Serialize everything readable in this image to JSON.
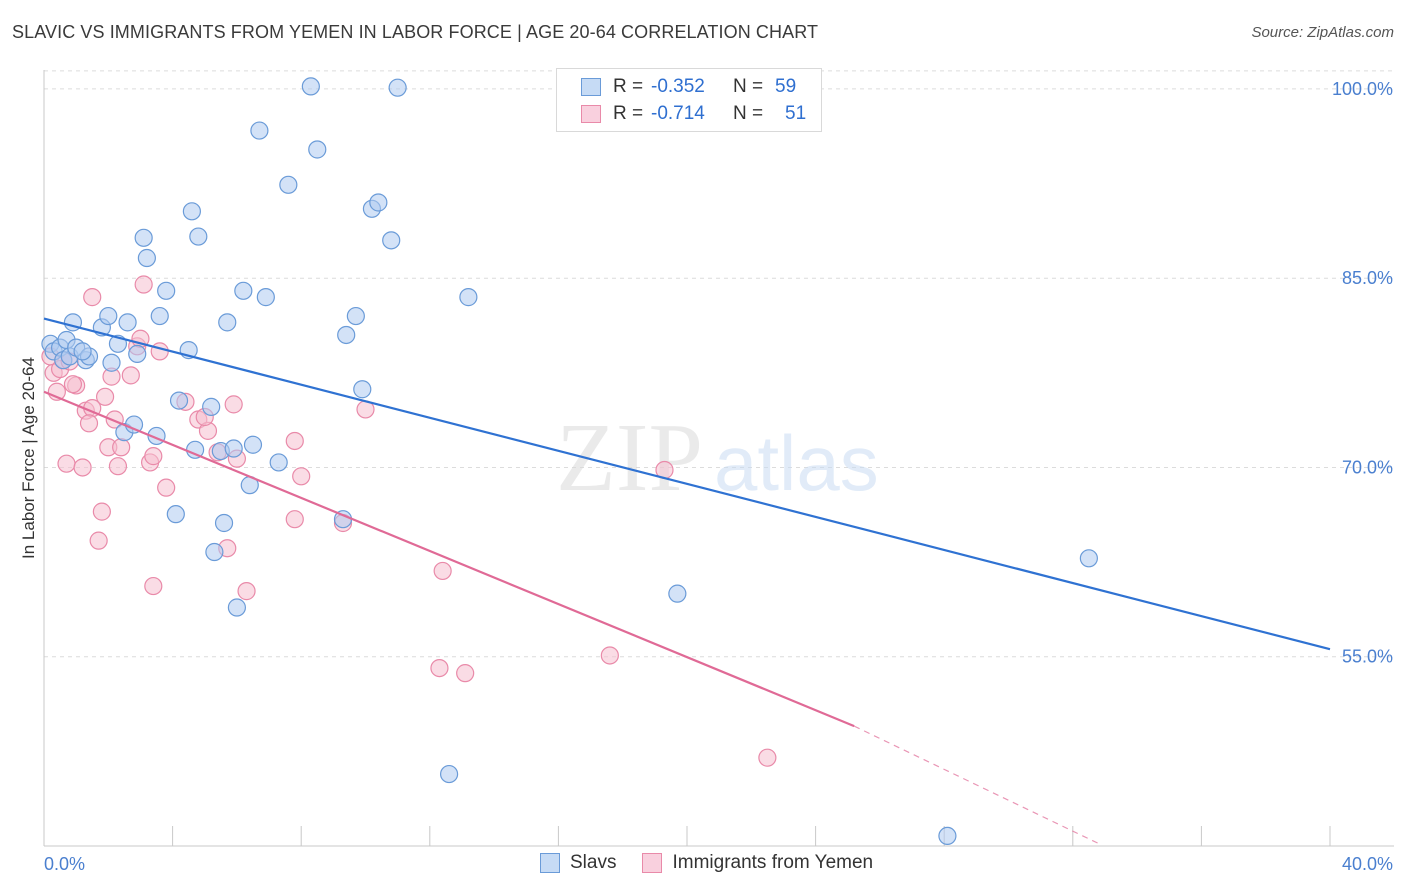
{
  "header": {
    "title": "SLAVIC VS IMMIGRANTS FROM YEMEN IN LABOR FORCE | AGE 20-64 CORRELATION CHART",
    "source": "Source: ZipAtlas.com"
  },
  "legend": {
    "rows": [
      {
        "r_label": "R =",
        "r_value": "-0.352",
        "n_label": "N =",
        "n_value": "59"
      },
      {
        "r_label": "R =",
        "r_value": "-0.714",
        "n_label": "N =",
        "n_value": "51"
      }
    ]
  },
  "bottom_legend": [
    "Slavs",
    "Immigrants from Yemen"
  ],
  "colors": {
    "slavs_fill": "#aecbf0",
    "slavs_stroke": "#6a9bd8",
    "slavs_line": "#2f72d2",
    "yemen_fill": "#f6bfd0",
    "yemen_stroke": "#e98aa9",
    "yemen_line": "#e06a96",
    "grid": "#dcdcdc",
    "tick_text": "#4a7fcf"
  },
  "watermark": {
    "zip": "ZIP",
    "atlas": "atlas"
  },
  "chart_data": {
    "type": "scatter",
    "title": "SLAVIC VS IMMIGRANTS FROM YEMEN IN LABOR FORCE | AGE 20-64 CORRELATION CHART",
    "ylabel": "In Labor Force | Age 20-64",
    "xlabel": "",
    "xlim": [
      0,
      40
    ],
    "ylim": [
      40,
      101.5
    ],
    "x_tick_labels": [
      "0.0%",
      "40.0%"
    ],
    "y_ticks": [
      {
        "value": 100,
        "label": "100.0%"
      },
      {
        "value": 85,
        "label": "85.0%"
      },
      {
        "value": 70,
        "label": "70.0%"
      },
      {
        "value": 55,
        "label": "55.0%"
      }
    ],
    "grid": true,
    "legend_position": "top-center",
    "series": [
      {
        "name": "Slavs",
        "trendline": {
          "x": [
            0,
            40
          ],
          "y": [
            81.8,
            55.6
          ],
          "extrapolated_to": 40
        },
        "points": [
          [
            0.2,
            79.8
          ],
          [
            0.3,
            79.2
          ],
          [
            0.5,
            79.5
          ],
          [
            0.6,
            78.5
          ],
          [
            0.8,
            78.8
          ],
          [
            0.7,
            80.1
          ],
          [
            1.0,
            79.5
          ],
          [
            0.9,
            81.5
          ],
          [
            1.3,
            78.5
          ],
          [
            1.4,
            78.8
          ],
          [
            1.2,
            79.2
          ],
          [
            1.8,
            81.1
          ],
          [
            2.0,
            82.0
          ],
          [
            2.1,
            78.3
          ],
          [
            2.3,
            79.8
          ],
          [
            2.6,
            81.5
          ],
          [
            2.9,
            79.0
          ],
          [
            3.2,
            86.6
          ],
          [
            3.1,
            88.2
          ],
          [
            3.6,
            82.0
          ],
          [
            3.8,
            84.0
          ],
          [
            4.5,
            79.3
          ],
          [
            4.6,
            90.3
          ],
          [
            4.8,
            88.3
          ],
          [
            4.2,
            75.3
          ],
          [
            5.2,
            74.8
          ],
          [
            5.7,
            81.5
          ],
          [
            6.2,
            84.0
          ],
          [
            6.7,
            96.7
          ],
          [
            6.9,
            83.5
          ],
          [
            7.6,
            92.4
          ],
          [
            8.3,
            100.2
          ],
          [
            8.5,
            95.2
          ],
          [
            9.4,
            80.5
          ],
          [
            9.7,
            82.0
          ],
          [
            9.9,
            76.2
          ],
          [
            10.2,
            90.5
          ],
          [
            10.4,
            91.0
          ],
          [
            10.8,
            88.0
          ],
          [
            11.0,
            100.1
          ],
          [
            2.5,
            72.8
          ],
          [
            2.8,
            73.4
          ],
          [
            3.5,
            72.5
          ],
          [
            4.7,
            71.4
          ],
          [
            5.5,
            71.3
          ],
          [
            5.9,
            71.5
          ],
          [
            6.5,
            71.8
          ],
          [
            7.3,
            70.4
          ],
          [
            6.4,
            68.6
          ],
          [
            4.1,
            66.3
          ],
          [
            5.6,
            65.6
          ],
          [
            5.3,
            63.3
          ],
          [
            6.0,
            58.9
          ],
          [
            9.3,
            65.9
          ],
          [
            13.2,
            83.5
          ],
          [
            19.7,
            60.0
          ],
          [
            32.5,
            62.8
          ],
          [
            12.6,
            45.7
          ],
          [
            28.1,
            40.8
          ]
        ]
      },
      {
        "name": "Immigrants from Yemen",
        "trendline": {
          "x": [
            0,
            25.2
          ],
          "y": [
            76.0,
            49.5
          ],
          "dashed_to": {
            "x": 32.8,
            "y": 40.2
          }
        },
        "points": [
          [
            0.2,
            78.8
          ],
          [
            0.3,
            77.5
          ],
          [
            0.5,
            77.8
          ],
          [
            0.6,
            78.5
          ],
          [
            0.8,
            78.4
          ],
          [
            0.4,
            76.0
          ],
          [
            1.0,
            76.5
          ],
          [
            1.3,
            74.5
          ],
          [
            1.5,
            74.7
          ],
          [
            1.4,
            73.5
          ],
          [
            0.7,
            70.3
          ],
          [
            1.2,
            70.0
          ],
          [
            1.9,
            75.6
          ],
          [
            2.0,
            71.6
          ],
          [
            1.8,
            66.5
          ],
          [
            1.7,
            64.2
          ],
          [
            1.5,
            83.5
          ],
          [
            2.4,
            71.6
          ],
          [
            2.2,
            73.8
          ],
          [
            2.1,
            77.2
          ],
          [
            2.7,
            77.3
          ],
          [
            2.9,
            79.6
          ],
          [
            3.0,
            80.2
          ],
          [
            3.1,
            84.5
          ],
          [
            3.3,
            70.4
          ],
          [
            3.4,
            70.9
          ],
          [
            3.8,
            68.4
          ],
          [
            4.4,
            75.2
          ],
          [
            4.8,
            73.8
          ],
          [
            5.1,
            72.9
          ],
          [
            5.9,
            75.0
          ],
          [
            5.4,
            71.2
          ],
          [
            6.0,
            70.7
          ],
          [
            6.3,
            60.2
          ],
          [
            5.7,
            63.6
          ],
          [
            7.8,
            72.1
          ],
          [
            7.8,
            65.9
          ],
          [
            8.0,
            69.3
          ],
          [
            9.3,
            65.6
          ],
          [
            10.0,
            74.6
          ],
          [
            3.4,
            60.6
          ],
          [
            12.4,
            61.8
          ],
          [
            12.3,
            54.1
          ],
          [
            13.1,
            53.7
          ],
          [
            17.6,
            55.1
          ],
          [
            19.3,
            69.8
          ],
          [
            22.5,
            47.0
          ],
          [
            2.3,
            70.1
          ],
          [
            3.6,
            79.2
          ],
          [
            0.9,
            76.6
          ],
          [
            5.0,
            74.0
          ]
        ]
      }
    ]
  }
}
